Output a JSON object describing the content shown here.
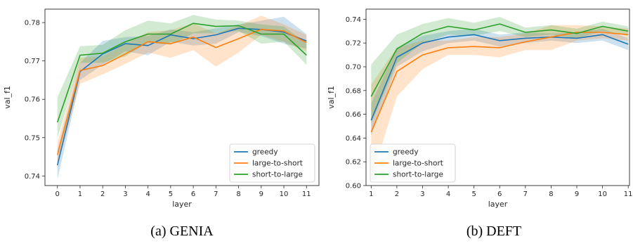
{
  "chart_data": [
    {
      "type": "line",
      "caption": "(a) GENIA",
      "xlabel": "layer",
      "ylabel": "val_f1",
      "x": [
        0,
        1,
        2,
        3,
        4,
        5,
        6,
        7,
        8,
        9,
        10,
        11
      ],
      "xlim": [
        -0.55,
        11.55
      ],
      "ylim": [
        0.7375,
        0.7835
      ],
      "yticks": [
        0.74,
        0.75,
        0.76,
        0.77,
        0.78
      ],
      "ytick_labels": [
        "0.74",
        "0.75",
        "0.76",
        "0.77",
        "0.78"
      ],
      "legend_position": "lower-right",
      "series": [
        {
          "name": "greedy",
          "color": "#1f77b4",
          "values": [
            0.7428,
            0.7672,
            0.7718,
            0.7745,
            0.774,
            0.7768,
            0.7758,
            0.7768,
            0.7785,
            0.7782,
            0.7775,
            0.7752
          ],
          "lower": [
            0.739,
            0.765,
            0.769,
            0.7725,
            0.7715,
            0.775,
            0.774,
            0.7745,
            0.7775,
            0.7765,
            0.7745,
            0.7732
          ],
          "upper": [
            0.7468,
            0.7695,
            0.7752,
            0.7762,
            0.7765,
            0.7782,
            0.7775,
            0.7785,
            0.7795,
            0.7805,
            0.7815,
            0.777
          ]
        },
        {
          "name": "large-to-short",
          "color": "#ff7f0e",
          "values": [
            0.7455,
            0.7675,
            0.7688,
            0.7718,
            0.775,
            0.7745,
            0.7762,
            0.7735,
            0.7758,
            0.7782,
            0.7778,
            0.7748
          ],
          "lower": [
            0.7428,
            0.764,
            0.7665,
            0.7692,
            0.7722,
            0.7708,
            0.7728,
            0.7685,
            0.7722,
            0.7768,
            0.775,
            0.7725
          ],
          "upper": [
            0.7485,
            0.7708,
            0.7712,
            0.7745,
            0.7775,
            0.778,
            0.7798,
            0.7772,
            0.7792,
            0.7818,
            0.7795,
            0.7768
          ]
        },
        {
          "name": "short-to-large",
          "color": "#2ca02c",
          "values": [
            0.754,
            0.7715,
            0.772,
            0.775,
            0.777,
            0.777,
            0.7798,
            0.779,
            0.7792,
            0.777,
            0.777,
            0.7715
          ],
          "lower": [
            0.7498,
            0.7695,
            0.7695,
            0.7712,
            0.7748,
            0.7742,
            0.7772,
            0.7772,
            0.7778,
            0.7745,
            0.775,
            0.769
          ],
          "upper": [
            0.7605,
            0.7738,
            0.7742,
            0.778,
            0.7805,
            0.7798,
            0.782,
            0.7808,
            0.7805,
            0.7795,
            0.779,
            0.7745
          ]
        }
      ]
    },
    {
      "type": "line",
      "caption": "(b) DEFT",
      "xlabel": "layer",
      "ylabel": "val_f1",
      "x": [
        1,
        2,
        3,
        4,
        5,
        6,
        7,
        8,
        9,
        10,
        11
      ],
      "xlim": [
        0.8,
        11.05
      ],
      "ylim": [
        0.6,
        0.7485
      ],
      "yticks": [
        0.6,
        0.62,
        0.64,
        0.66,
        0.68,
        0.7,
        0.72,
        0.74
      ],
      "ytick_labels": [
        "0.60",
        "0.62",
        "0.64",
        "0.66",
        "0.68",
        "0.70",
        "0.72",
        "0.74"
      ],
      "legend_position": "lower-left",
      "series": [
        {
          "name": "greedy",
          "color": "#1f77b4",
          "values": [
            0.655,
            0.708,
            0.72,
            0.725,
            0.727,
            0.722,
            0.724,
            0.725,
            0.724,
            0.727,
            0.719
          ],
          "lower": [
            0.642,
            0.7,
            0.713,
            0.72,
            0.722,
            0.717,
            0.72,
            0.722,
            0.72,
            0.722,
            0.714
          ],
          "upper": [
            0.669,
            0.716,
            0.726,
            0.73,
            0.732,
            0.727,
            0.729,
            0.728,
            0.729,
            0.732,
            0.724
          ]
        },
        {
          "name": "large-to-short",
          "color": "#ff7f0e",
          "values": [
            0.645,
            0.696,
            0.71,
            0.716,
            0.717,
            0.716,
            0.721,
            0.725,
            0.729,
            0.729,
            0.727
          ],
          "lower": [
            0.605,
            0.675,
            0.698,
            0.71,
            0.71,
            0.708,
            0.714,
            0.714,
            0.722,
            0.724,
            0.722
          ],
          "upper": [
            0.685,
            0.716,
            0.722,
            0.722,
            0.725,
            0.725,
            0.728,
            0.735,
            0.735,
            0.734,
            0.732
          ]
        },
        {
          "name": "short-to-large",
          "color": "#2ca02c",
          "values": [
            0.675,
            0.715,
            0.728,
            0.734,
            0.731,
            0.736,
            0.729,
            0.731,
            0.728,
            0.734,
            0.73
          ],
          "lower": [
            0.652,
            0.703,
            0.72,
            0.727,
            0.726,
            0.73,
            0.725,
            0.727,
            0.724,
            0.73,
            0.726
          ],
          "upper": [
            0.702,
            0.727,
            0.736,
            0.741,
            0.737,
            0.742,
            0.733,
            0.735,
            0.732,
            0.738,
            0.734
          ]
        }
      ]
    }
  ]
}
